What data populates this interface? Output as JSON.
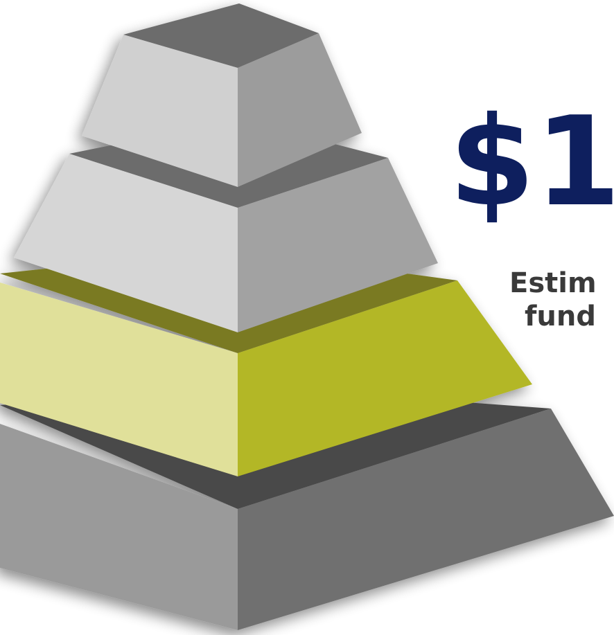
{
  "headline": {
    "amount": "$1",
    "caption_lines": [
      "Estim",
      "fund"
    ]
  }
}
